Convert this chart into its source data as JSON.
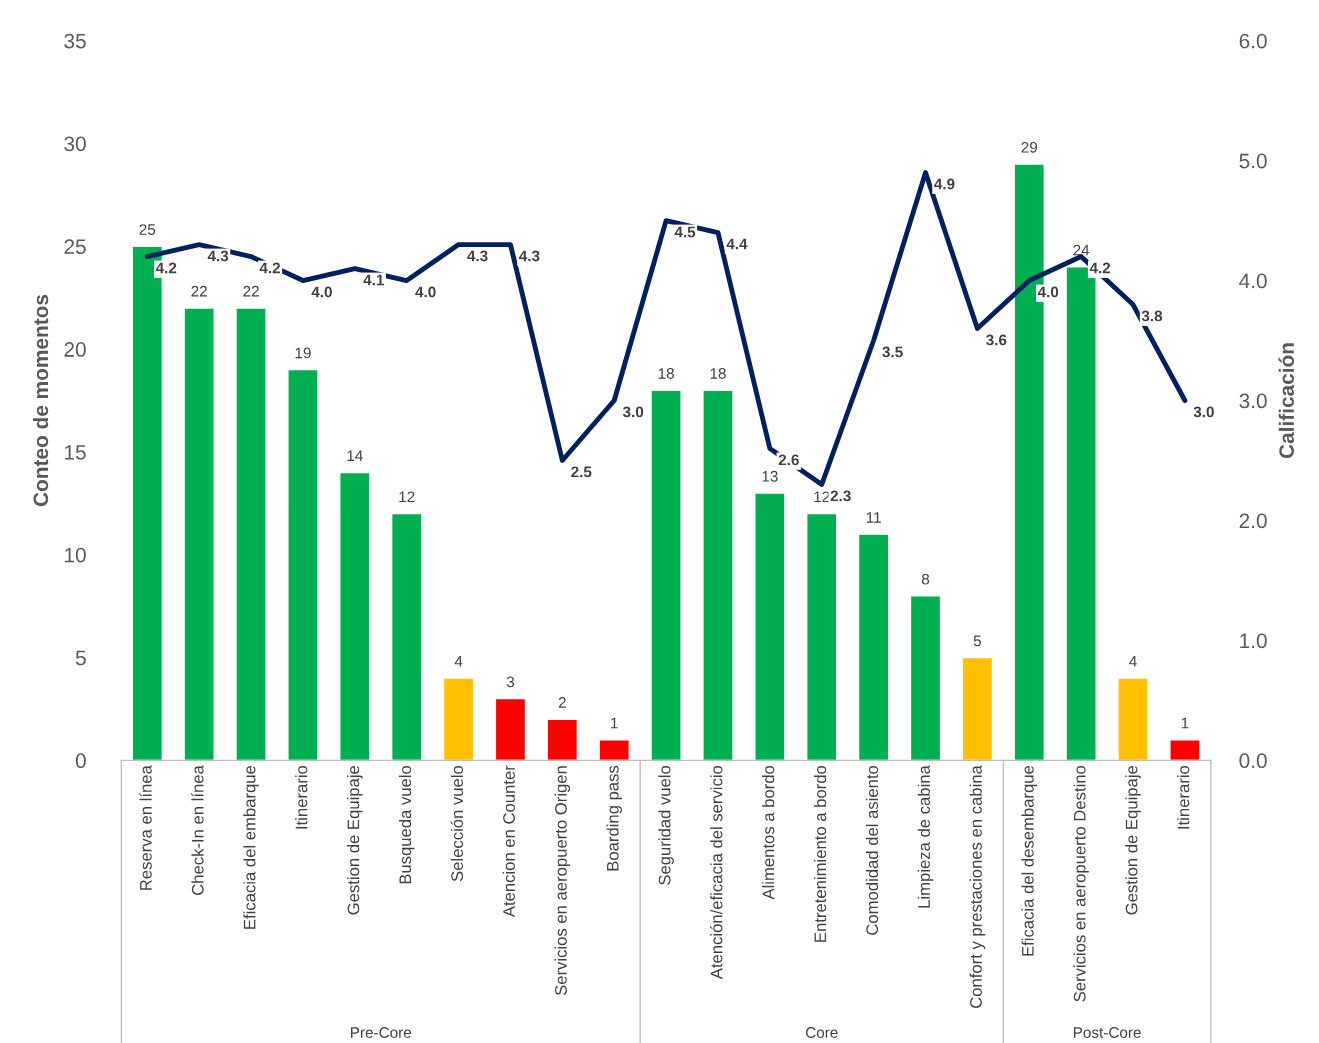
{
  "chart_data": {
    "type": "bar",
    "ylabel": "Conteo de momentos",
    "y2label": "Calificación",
    "categories": [
      "Reserva en línea",
      "Check-In en línea",
      "Eficacia del embarque",
      "Itinerario",
      "Gestion de Equipaje",
      "Busqueda vuelo",
      "Selección vuelo",
      "Atencion en Counter",
      "Servicios en aeropuerto Origen",
      "Boarding pass",
      "Seguridad vuelo",
      "Atención/eficacia del servicio",
      "Alimentos a bordo",
      "Entretenimiento a bordo",
      "Comodidad del asiento",
      "Limpieza de cabina",
      "Confort y prestaciones en cabina",
      "Eficacia del desembarque",
      "Servicios en aeropuerto Destino",
      "Gestion de Equipaje",
      "Itinerario"
    ],
    "series": [
      {
        "values": [
          25,
          22,
          22,
          19,
          14,
          12,
          4,
          3,
          2,
          1,
          18,
          18,
          13,
          12,
          11,
          8,
          5,
          29,
          24,
          4,
          1
        ],
        "colors": [
          "#00b050",
          "#00b050",
          "#00b050",
          "#00b050",
          "#00b050",
          "#00b050",
          "#ffc000",
          "#ff0000",
          "#ff0000",
          "#ff0000",
          "#00b050",
          "#00b050",
          "#00b050",
          "#00b050",
          "#00b050",
          "#00b050",
          "#ffc000",
          "#00b050",
          "#00b050",
          "#ffc000",
          "#ff0000"
        ]
      },
      {
        "type": "line",
        "axis": "y2",
        "color": "#002060",
        "values": [
          4.2,
          4.3,
          4.2,
          4.0,
          4.1,
          4.0,
          4.3,
          4.3,
          2.5,
          3.0,
          4.5,
          4.4,
          2.6,
          2.3,
          3.5,
          4.9,
          3.6,
          4.0,
          4.2,
          3.8,
          3.0
        ],
        "value_labels": [
          "4.2",
          "4.3",
          "4.2",
          "4.0",
          "4.1",
          "4.0",
          "4.3",
          "4.3",
          "2.5",
          "3.0",
          "4.5",
          "4.4",
          "2.6",
          "2.3",
          "3.5",
          "4.9",
          "3.6",
          "4.0",
          "4.2",
          "3.8",
          "3.0"
        ]
      }
    ],
    "ylim": [
      0,
      35
    ],
    "yticks": [
      0,
      5,
      10,
      15,
      20,
      25,
      30,
      35
    ],
    "y2lim": [
      0,
      6
    ],
    "y2ticks": [
      {
        "value": 0,
        "label": "0.0"
      },
      {
        "value": 1,
        "label": "1.0"
      },
      {
        "value": 2,
        "label": "2.0"
      },
      {
        "value": 3,
        "label": "3.0"
      },
      {
        "value": 4,
        "label": "4.0"
      },
      {
        "value": 5,
        "label": "5.0"
      },
      {
        "value": 6,
        "label": "6.0"
      }
    ],
    "data_labels": true,
    "grid": false,
    "legend": false,
    "annotations": [
      "Pre-Core",
      "Core",
      "Post-Core"
    ]
  }
}
